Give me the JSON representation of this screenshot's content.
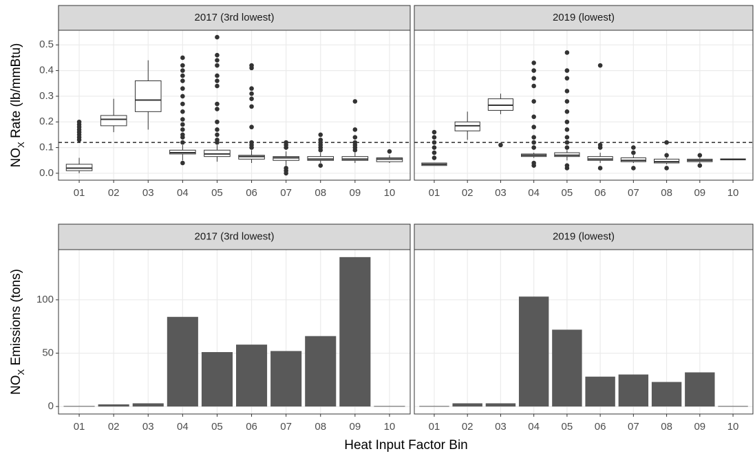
{
  "chart_data": [
    {
      "type": "box",
      "title": "2017 (3rd lowest)",
      "y_label": [
        "NO",
        "X",
        " Rate (lb/mmBtu)"
      ],
      "categories": [
        "01",
        "02",
        "03",
        "04",
        "05",
        "06",
        "07",
        "08",
        "09",
        "10"
      ],
      "ylim": [
        -0.027,
        0.557
      ],
      "yticks": [
        {
          "value": 0,
          "label": "0.0"
        },
        0.1,
        0.2,
        0.3,
        0.4,
        0.5
      ],
      "grid": true,
      "hline": 0.12,
      "color": "#333333",
      "boxes": [
        {
          "min": 0,
          "q1": 0.01,
          "median": 0.02,
          "q3": 0.035,
          "max": 0.06,
          "outliers": [
            0.13,
            0.14,
            0.15,
            0.16,
            0.17,
            0.18,
            0.19,
            0.2
          ]
        },
        {
          "min": 0.16,
          "q1": 0.185,
          "median": 0.21,
          "q3": 0.225,
          "max": 0.29,
          "outliers": []
        },
        {
          "min": 0.17,
          "q1": 0.24,
          "median": 0.285,
          "q3": 0.36,
          "max": 0.44,
          "outliers": []
        },
        {
          "min": 0.05,
          "q1": 0.075,
          "median": 0.08,
          "q3": 0.09,
          "max": 0.11,
          "outliers": [
            0.04,
            0.12,
            0.14,
            0.15,
            0.17,
            0.19,
            0.21,
            0.24,
            0.27,
            0.3,
            0.33,
            0.36,
            0.38,
            0.4,
            0.42,
            0.45
          ]
        },
        {
          "min": 0.045,
          "q1": 0.065,
          "median": 0.075,
          "q3": 0.09,
          "max": 0.11,
          "outliers": [
            0.12,
            0.13,
            0.15,
            0.17,
            0.2,
            0.25,
            0.27,
            0.34,
            0.36,
            0.38,
            0.42,
            0.44,
            0.46,
            0.53
          ]
        },
        {
          "min": 0.04,
          "q1": 0.055,
          "median": 0.065,
          "q3": 0.07,
          "max": 0.09,
          "outliers": [
            0.1,
            0.11,
            0.12,
            0.18,
            0.26,
            0.29,
            0.31,
            0.33,
            0.41,
            0.42
          ]
        },
        {
          "min": 0.03,
          "q1": 0.05,
          "median": 0.06,
          "q3": 0.065,
          "max": 0.085,
          "outliers": [
            0.0,
            0.01,
            0.02,
            0.1,
            0.11,
            0.12
          ]
        },
        {
          "min": 0.04,
          "q1": 0.05,
          "median": 0.055,
          "q3": 0.065,
          "max": 0.08,
          "outliers": [
            0.03,
            0.09,
            0.1,
            0.11,
            0.12,
            0.13,
            0.15
          ]
        },
        {
          "min": 0.04,
          "q1": 0.05,
          "median": 0.055,
          "q3": 0.065,
          "max": 0.08,
          "outliers": [
            0.09,
            0.1,
            0.11,
            0.12,
            0.14,
            0.17,
            0.28
          ]
        },
        {
          "min": 0.04,
          "q1": 0.045,
          "median": 0.055,
          "q3": 0.06,
          "max": 0.07,
          "outliers": [
            0.085
          ]
        }
      ]
    },
    {
      "type": "box",
      "title": "2019 (lowest)",
      "categories": [
        "01",
        "02",
        "03",
        "04",
        "05",
        "06",
        "07",
        "08",
        "09",
        "10"
      ],
      "ylim": [
        -0.027,
        0.557
      ],
      "grid": true,
      "hline": 0.12,
      "color": "#333333",
      "boxes": [
        {
          "min": 0.03,
          "q1": 0.03,
          "median": 0.035,
          "q3": 0.04,
          "max": 0.04,
          "outliers": [
            0.06,
            0.08,
            0.1,
            0.12,
            0.14,
            0.16
          ]
        },
        {
          "min": 0.13,
          "q1": 0.165,
          "median": 0.185,
          "q3": 0.2,
          "max": 0.24,
          "outliers": []
        },
        {
          "min": 0.23,
          "q1": 0.245,
          "median": 0.265,
          "q3": 0.29,
          "max": 0.31,
          "outliers": [
            0.11
          ]
        },
        {
          "min": 0.06,
          "q1": 0.065,
          "median": 0.07,
          "q3": 0.075,
          "max": 0.08,
          "outliers": [
            0.03,
            0.04,
            0.1,
            0.12,
            0.14,
            0.18,
            0.22,
            0.28,
            0.34,
            0.37,
            0.4,
            0.43
          ]
        },
        {
          "min": 0.05,
          "q1": 0.065,
          "median": 0.07,
          "q3": 0.08,
          "max": 0.09,
          "outliers": [
            0.02,
            0.03,
            0.1,
            0.12,
            0.14,
            0.17,
            0.2,
            0.24,
            0.28,
            0.32,
            0.37,
            0.4,
            0.47
          ]
        },
        {
          "min": 0.04,
          "q1": 0.05,
          "median": 0.055,
          "q3": 0.065,
          "max": 0.08,
          "outliers": [
            0.02,
            0.1,
            0.11,
            0.42
          ]
        },
        {
          "min": 0.04,
          "q1": 0.045,
          "median": 0.05,
          "q3": 0.06,
          "max": 0.07,
          "outliers": [
            0.02,
            0.08,
            0.1
          ]
        },
        {
          "min": 0.035,
          "q1": 0.04,
          "median": 0.045,
          "q3": 0.055,
          "max": 0.06,
          "outliers": [
            0.02,
            0.07,
            0.12
          ]
        },
        {
          "min": 0.04,
          "q1": 0.045,
          "median": 0.05,
          "q3": 0.055,
          "max": 0.06,
          "outliers": [
            0.03,
            0.07
          ]
        },
        {
          "min": 0.052,
          "q1": 0.052,
          "median": 0.054,
          "q3": 0.056,
          "max": 0.056,
          "outliers": []
        }
      ]
    },
    {
      "type": "bar",
      "title": "2017 (3rd lowest)",
      "y_label": [
        "NO",
        "X",
        " Emissions (tons)"
      ],
      "x_label": "Heat Input Factor Bin",
      "categories": [
        "01",
        "02",
        "03",
        "04",
        "05",
        "06",
        "07",
        "08",
        "09",
        "10"
      ],
      "values": [
        0.5,
        2,
        3,
        84,
        51,
        58,
        52,
        66,
        140,
        0.5
      ],
      "ylim": [
        -7,
        147
      ],
      "yticks": [
        0,
        50,
        100
      ],
      "grid": true,
      "color": "#595959"
    },
    {
      "type": "bar",
      "title": "2019 (lowest)",
      "categories": [
        "01",
        "02",
        "03",
        "04",
        "05",
        "06",
        "07",
        "08",
        "09",
        "10"
      ],
      "values": [
        0.5,
        3,
        3,
        103,
        72,
        28,
        30,
        23,
        32,
        0.5
      ],
      "ylim": [
        -7,
        147
      ],
      "grid": true,
      "color": "#595959"
    }
  ]
}
